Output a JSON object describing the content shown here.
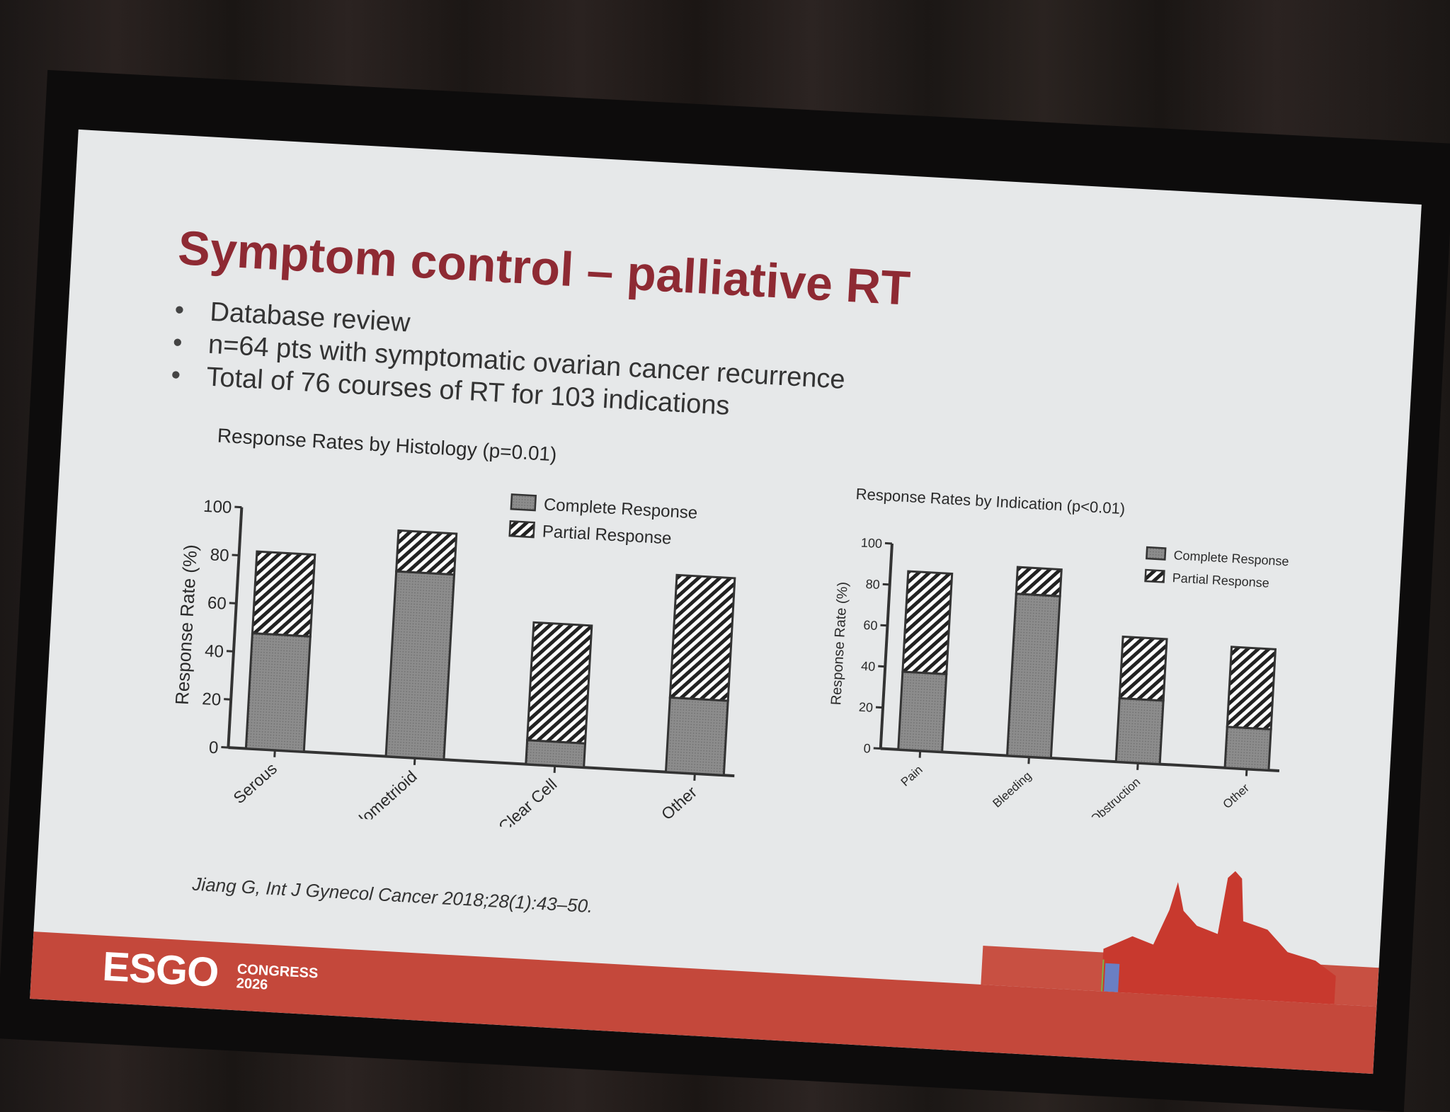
{
  "slide": {
    "title": "Symptom control – palliative RT",
    "bullets": [
      "Database review",
      "n=64 pts with symptomatic ovarian cancer recurrence",
      "Total of 76 courses of RT for 103 indications"
    ],
    "citation": "Jiang G, Int J Gynecol Cancer 2018;28(1):43–50.",
    "footer": {
      "logo": "ESGO",
      "logo_line1": "CONGRESS",
      "logo_line2": "2026"
    },
    "colors": {
      "title": "#8e2a33",
      "footer": "#c4483b",
      "background": "#e6e8e9"
    }
  },
  "chart_data": [
    {
      "type": "bar",
      "stacked": true,
      "title": "Response Rates by Histology (p=0.01)",
      "xlabel": "",
      "ylabel": "Response Rate (%)",
      "ylim": [
        0,
        100
      ],
      "yticks": [
        "0",
        "20",
        "40",
        "60",
        "80",
        "100"
      ],
      "categories": [
        "Serous",
        "Endometrioid",
        "Clear Cell",
        "Other"
      ],
      "series": [
        {
          "name": "Complete Response",
          "values": [
            48,
            77,
            10,
            31
          ]
        },
        {
          "name": "Partial Response",
          "values": [
            34,
            17,
            49,
            51
          ]
        }
      ],
      "legend": "top-right"
    },
    {
      "type": "bar",
      "stacked": true,
      "title": "Response Rates by Indication (p<0.01)",
      "xlabel": "",
      "ylabel": "Response Rate (%)",
      "ylim": [
        0,
        100
      ],
      "yticks": [
        "0",
        "20",
        "40",
        "60",
        "80",
        "100"
      ],
      "categories": [
        "Pain",
        "Bleeding",
        "Obstruction",
        "Other"
      ],
      "series": [
        {
          "name": "Complete Response",
          "values": [
            38,
            79,
            31,
            20
          ]
        },
        {
          "name": "Partial Response",
          "values": [
            49,
            13,
            30,
            39
          ]
        }
      ],
      "legend": "top-right"
    }
  ]
}
